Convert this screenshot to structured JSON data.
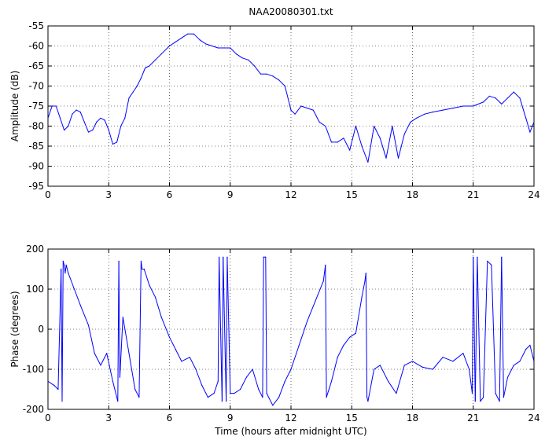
{
  "figure": {
    "title": "NAA20080301.txt"
  },
  "chart_data": [
    {
      "type": "line",
      "title": "NAA20080301.txt",
      "xlabel": "",
      "ylabel": "Amplitude (dB)",
      "xlim": [
        0,
        24
      ],
      "ylim": [
        -95,
        -55
      ],
      "x_ticks": [
        0,
        3,
        6,
        9,
        12,
        15,
        18,
        21,
        24
      ],
      "y_ticks": [
        -95,
        -90,
        -85,
        -80,
        -75,
        -70,
        -65,
        -60,
        -55
      ],
      "grid": true,
      "color": "#0000ff",
      "series": [
        {
          "x": [
            0,
            0.2,
            0.4,
            0.6,
            0.8,
            1.0,
            1.2,
            1.4,
            1.6,
            1.8,
            2.0,
            2.2,
            2.4,
            2.6,
            2.8,
            3.0,
            3.2,
            3.4,
            3.6,
            3.8,
            4.0,
            4.2,
            4.4,
            4.6,
            4.8,
            5.0,
            5.3,
            5.6,
            6.0,
            6.3,
            6.6,
            6.9,
            7.2,
            7.5,
            7.8,
            8.1,
            8.4,
            8.7,
            9.0,
            9.3,
            9.6,
            9.9,
            10.2,
            10.5,
            10.8,
            11.1,
            11.4,
            11.7,
            12.0,
            12.2,
            12.5,
            12.8,
            13.1,
            13.4,
            13.7,
            14.0,
            14.3,
            14.6,
            14.9,
            15.2,
            15.5,
            15.8,
            16.1,
            16.4,
            16.7,
            17.0,
            17.3,
            17.6,
            17.9,
            18.2,
            18.6,
            19.0,
            19.5,
            20.0,
            20.5,
            21.0,
            21.5,
            21.8,
            22.1,
            22.4,
            22.7,
            23.0,
            23.3,
            23.6,
            23.8,
            24.0
          ],
          "y": [
            -78,
            -75,
            -75,
            -78,
            -81,
            -80,
            -77,
            -76,
            -76.5,
            -79,
            -81.5,
            -81,
            -79,
            -78,
            -78.5,
            -81,
            -84.5,
            -84,
            -80,
            -78,
            -73,
            -71.5,
            -70,
            -68,
            -65.5,
            -65,
            -63.5,
            -62,
            -60,
            -59,
            -58,
            -57,
            -57,
            -58.5,
            -59.5,
            -60,
            -60.5,
            -60.5,
            -60.5,
            -62,
            -63,
            -63.5,
            -65,
            -67,
            -67,
            -67.5,
            -68.5,
            -70,
            -76,
            -77,
            -75,
            -75.5,
            -76,
            -79,
            -80,
            -84,
            -84,
            -83,
            -86,
            -80,
            -85,
            -89,
            -80,
            -83,
            -88,
            -80,
            -88,
            -82,
            -79,
            -78,
            -77,
            -76.5,
            -76,
            -75.5,
            -75,
            -75,
            -74,
            -72.5,
            -73,
            -74.5,
            -73,
            -71.5,
            -73,
            -78,
            -81.5,
            -79
          ]
        }
      ]
    },
    {
      "type": "line",
      "title": "",
      "xlabel": "Time (hours after midnight UTC)",
      "ylabel": "Phase (degrees)",
      "xlim": [
        0,
        24
      ],
      "ylim": [
        -200,
        200
      ],
      "x_ticks": [
        0,
        3,
        6,
        9,
        12,
        15,
        18,
        21,
        24
      ],
      "y_ticks": [
        -200,
        -100,
        0,
        100,
        200
      ],
      "grid": true,
      "color": "#0000ff",
      "series": [
        {
          "x": [
            0,
            0.3,
            0.5,
            0.65,
            0.7,
            0.75,
            0.8,
            0.85,
            0.9,
            1.0,
            1.3,
            1.6,
            2.0,
            2.3,
            2.6,
            2.9,
            3.2,
            3.45,
            3.5,
            3.55,
            3.7,
            4.0,
            4.3,
            4.5,
            4.6,
            4.65,
            4.75,
            5.0,
            5.3,
            5.6,
            6.0,
            6.3,
            6.6,
            7.0,
            7.3,
            7.6,
            7.9,
            8.2,
            8.4,
            8.45,
            8.6,
            8.65,
            8.8,
            8.85,
            9.0,
            9.2,
            9.5,
            9.8,
            10.1,
            10.4,
            10.6,
            10.65,
            10.75,
            10.8,
            11.1,
            11.4,
            11.7,
            12.0,
            12.4,
            12.8,
            13.2,
            13.6,
            13.7,
            13.75,
            14.0,
            14.3,
            14.6,
            14.9,
            15.2,
            15.5,
            15.65,
            15.7,
            15.75,
            15.8,
            16.1,
            16.4,
            16.8,
            17.2,
            17.6,
            18.0,
            18.5,
            19.0,
            19.5,
            20.0,
            20.5,
            20.8,
            20.95,
            21.0,
            21.1,
            21.2,
            21.35,
            21.5,
            21.7,
            21.9,
            22.1,
            22.3,
            22.4,
            22.5,
            22.7,
            23.0,
            23.3,
            23.6,
            23.8,
            24.0
          ],
          "y": [
            -130,
            -140,
            -150,
            150,
            -180,
            170,
            160,
            140,
            160,
            140,
            100,
            60,
            10,
            -60,
            -90,
            -60,
            -130,
            -180,
            170,
            -120,
            30,
            -60,
            -150,
            -170,
            170,
            150,
            150,
            110,
            80,
            30,
            -20,
            -50,
            -80,
            -70,
            -100,
            -140,
            -170,
            -160,
            -130,
            180,
            -180,
            180,
            -180,
            180,
            -160,
            -160,
            -150,
            -120,
            -100,
            -150,
            -170,
            180,
            180,
            -160,
            -190,
            -170,
            -130,
            -100,
            -40,
            20,
            70,
            120,
            160,
            -170,
            -130,
            -70,
            -40,
            -20,
            -10,
            80,
            120,
            140,
            -170,
            -180,
            -100,
            -90,
            -130,
            -160,
            -90,
            -80,
            -95,
            -100,
            -70,
            -80,
            -60,
            -100,
            -160,
            180,
            -180,
            180,
            -180,
            -170,
            170,
            160,
            -160,
            -180,
            180,
            -170,
            -120,
            -90,
            -80,
            -50,
            -40,
            -80
          ]
        }
      ]
    }
  ]
}
